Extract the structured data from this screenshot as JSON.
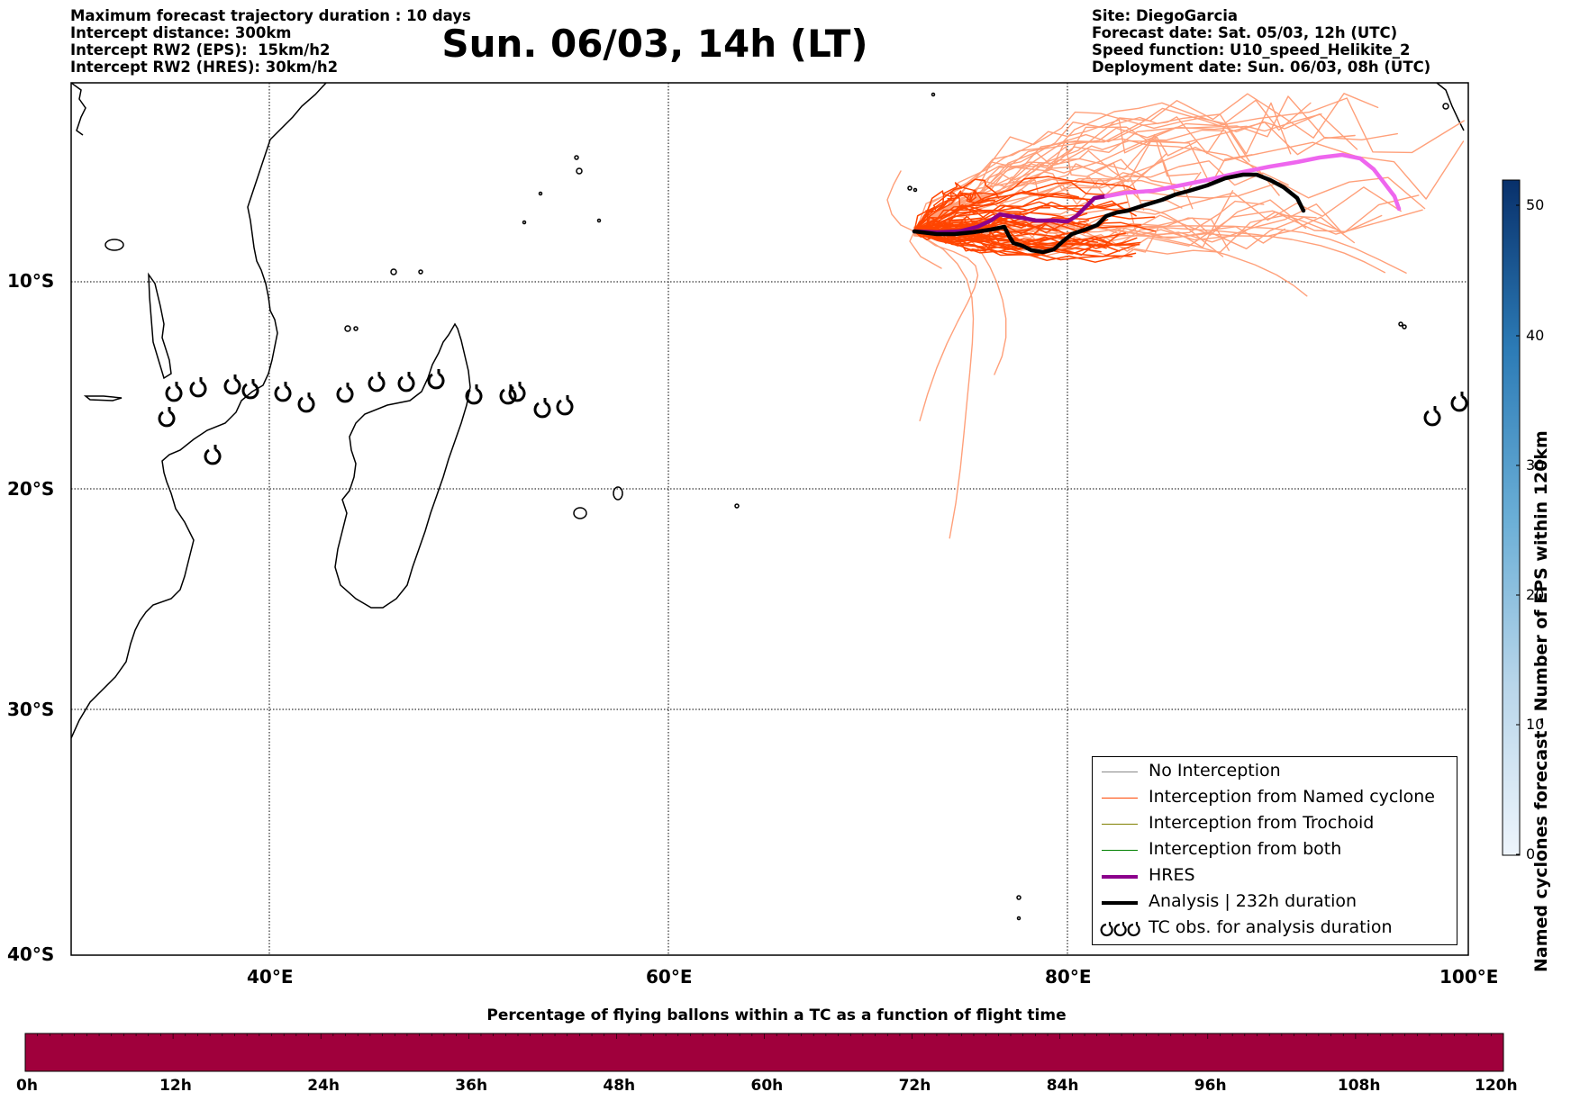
{
  "header": {
    "left_lines": [
      "Maximum forecast trajectory duration : 10 days",
      "Intercept distance: 300km",
      "Intercept RW2 (EPS):  15km/h2",
      "Intercept RW2 (HRES): 30km/h2"
    ],
    "title": "Sun. 06/03, 14h (LT)",
    "right_lines": [
      "Site: DiegoGarcia",
      "Forecast date: Sat. 05/03, 12h (UTC)",
      "Speed function: U10_speed_Helikite_2",
      "Deployment date: Sun. 06/03, 08h (UTC)"
    ]
  },
  "map": {
    "lat_labels": [
      "10°S",
      "20°S",
      "30°S",
      "40°S"
    ],
    "lon_labels": [
      "40°E",
      "60°E",
      "80°E",
      "100°E"
    ],
    "extent": {
      "lon": [
        30,
        100
      ],
      "lat": [
        -40,
        -1
      ]
    },
    "colors": {
      "eps_no": "#888888",
      "named": "#ff4500",
      "named_light": "#ffa07a",
      "trochoid": "#808000",
      "both": "#008000",
      "hres": "#8b008b",
      "hres_ext": "#ee66ee",
      "analysis": "#000000"
    }
  },
  "legend": {
    "items": [
      {
        "label": "No Interception",
        "color": "#888888",
        "width": 1
      },
      {
        "label": "Interception from Named cyclone",
        "color": "#ff4500",
        "width": 1.5
      },
      {
        "label": "Interception from Trochoid",
        "color": "#808000",
        "width": 1.5
      },
      {
        "label": "Interception from both",
        "color": "#008000",
        "width": 1.5
      },
      {
        "label": "HRES",
        "color": "#8b008b",
        "width": 4
      },
      {
        "label": "Analysis | 232h duration",
        "color": "#000000",
        "width": 4
      },
      {
        "label": "TC obs. for analysis duration",
        "color": "#000000",
        "width": 0
      }
    ]
  },
  "colorbar_right": {
    "title": "Named cyclones forecast - Number of EPS within 120km",
    "ticks": [
      "0",
      "10",
      "20",
      "30",
      "40",
      "50"
    ]
  },
  "bottom_bar": {
    "title": "Percentage of flying ballons within a TC as a function of flight time",
    "ticks": [
      "0h",
      "12h",
      "24h",
      "36h",
      "48h",
      "60h",
      "72h",
      "84h",
      "96h",
      "108h",
      "120h"
    ],
    "fill_color": "#a0003c",
    "fill_fraction": 1.0
  }
}
